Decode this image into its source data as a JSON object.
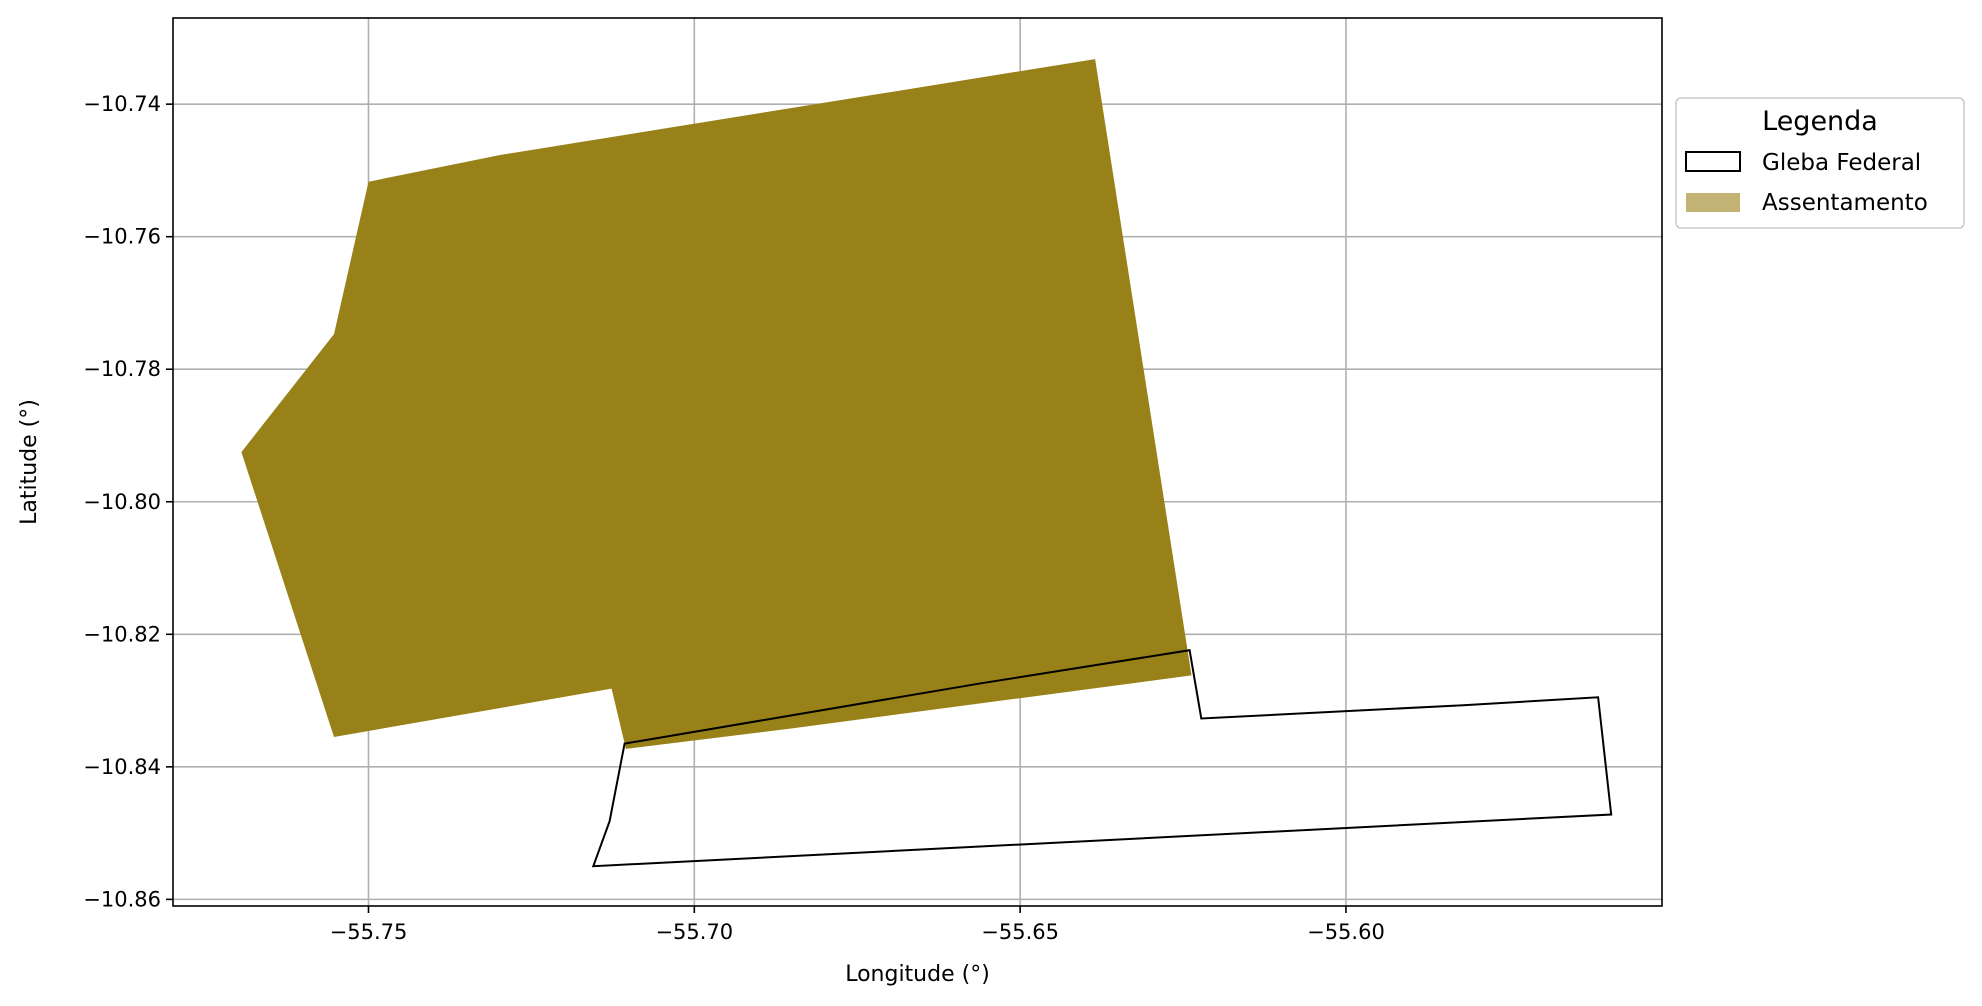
{
  "chart_data": {
    "type": "map",
    "xlabel": "Longitude (°)",
    "ylabel": "Latitude (°)",
    "xlim": [
      -55.78,
      -55.5515
    ],
    "ylim": [
      -10.861,
      -10.727
    ],
    "x_ticks": [
      -55.75,
      -55.7,
      -55.65,
      -55.6
    ],
    "x_tick_labels": [
      "−55.75",
      "−55.70",
      "−55.65",
      "−55.60"
    ],
    "y_ticks": [
      -10.74,
      -10.76,
      -10.78,
      -10.8,
      -10.82,
      -10.84,
      -10.86
    ],
    "y_tick_labels": [
      "−10.74",
      "−10.76",
      "−10.78",
      "−10.80",
      "−10.82",
      "−10.84",
      "−10.86"
    ],
    "grid": true,
    "legend": {
      "title": "Legenda",
      "placement": "outside-upper-right",
      "entries": [
        {
          "label": "Gleba Federal",
          "style": "outline",
          "edge_color": "#000000",
          "fill_color": "none"
        },
        {
          "label": "Assentamento",
          "style": "fill",
          "fill_color": "#c2b273"
        }
      ]
    },
    "series": [
      {
        "name": "Assentamento",
        "kind": "polygon-fill",
        "color": "#988118",
        "points": [
          [
            -55.7695,
            -10.7925
          ],
          [
            -55.7553,
            -10.7747
          ],
          [
            -55.75,
            -10.7517
          ],
          [
            -55.73,
            -10.7477
          ],
          [
            -55.6385,
            -10.7332
          ],
          [
            -55.6237,
            -10.8262
          ],
          [
            -55.685,
            -10.8342
          ],
          [
            -55.7105,
            -10.8373
          ],
          [
            -55.7127,
            -10.8282
          ],
          [
            -55.7553,
            -10.8355
          ]
        ]
      },
      {
        "name": "Gleba Federal",
        "kind": "polygon-outline",
        "color": "#000000",
        "points": [
          [
            -55.7107,
            -10.8365
          ],
          [
            -55.656,
            -10.8274
          ],
          [
            -55.624,
            -10.8224
          ],
          [
            -55.6222,
            -10.8327
          ],
          [
            -55.582,
            -10.8307
          ],
          [
            -55.5613,
            -10.8295
          ],
          [
            -55.5593,
            -10.8472
          ],
          [
            -55.7155,
            -10.855
          ],
          [
            -55.713,
            -10.8482
          ]
        ]
      }
    ]
  }
}
